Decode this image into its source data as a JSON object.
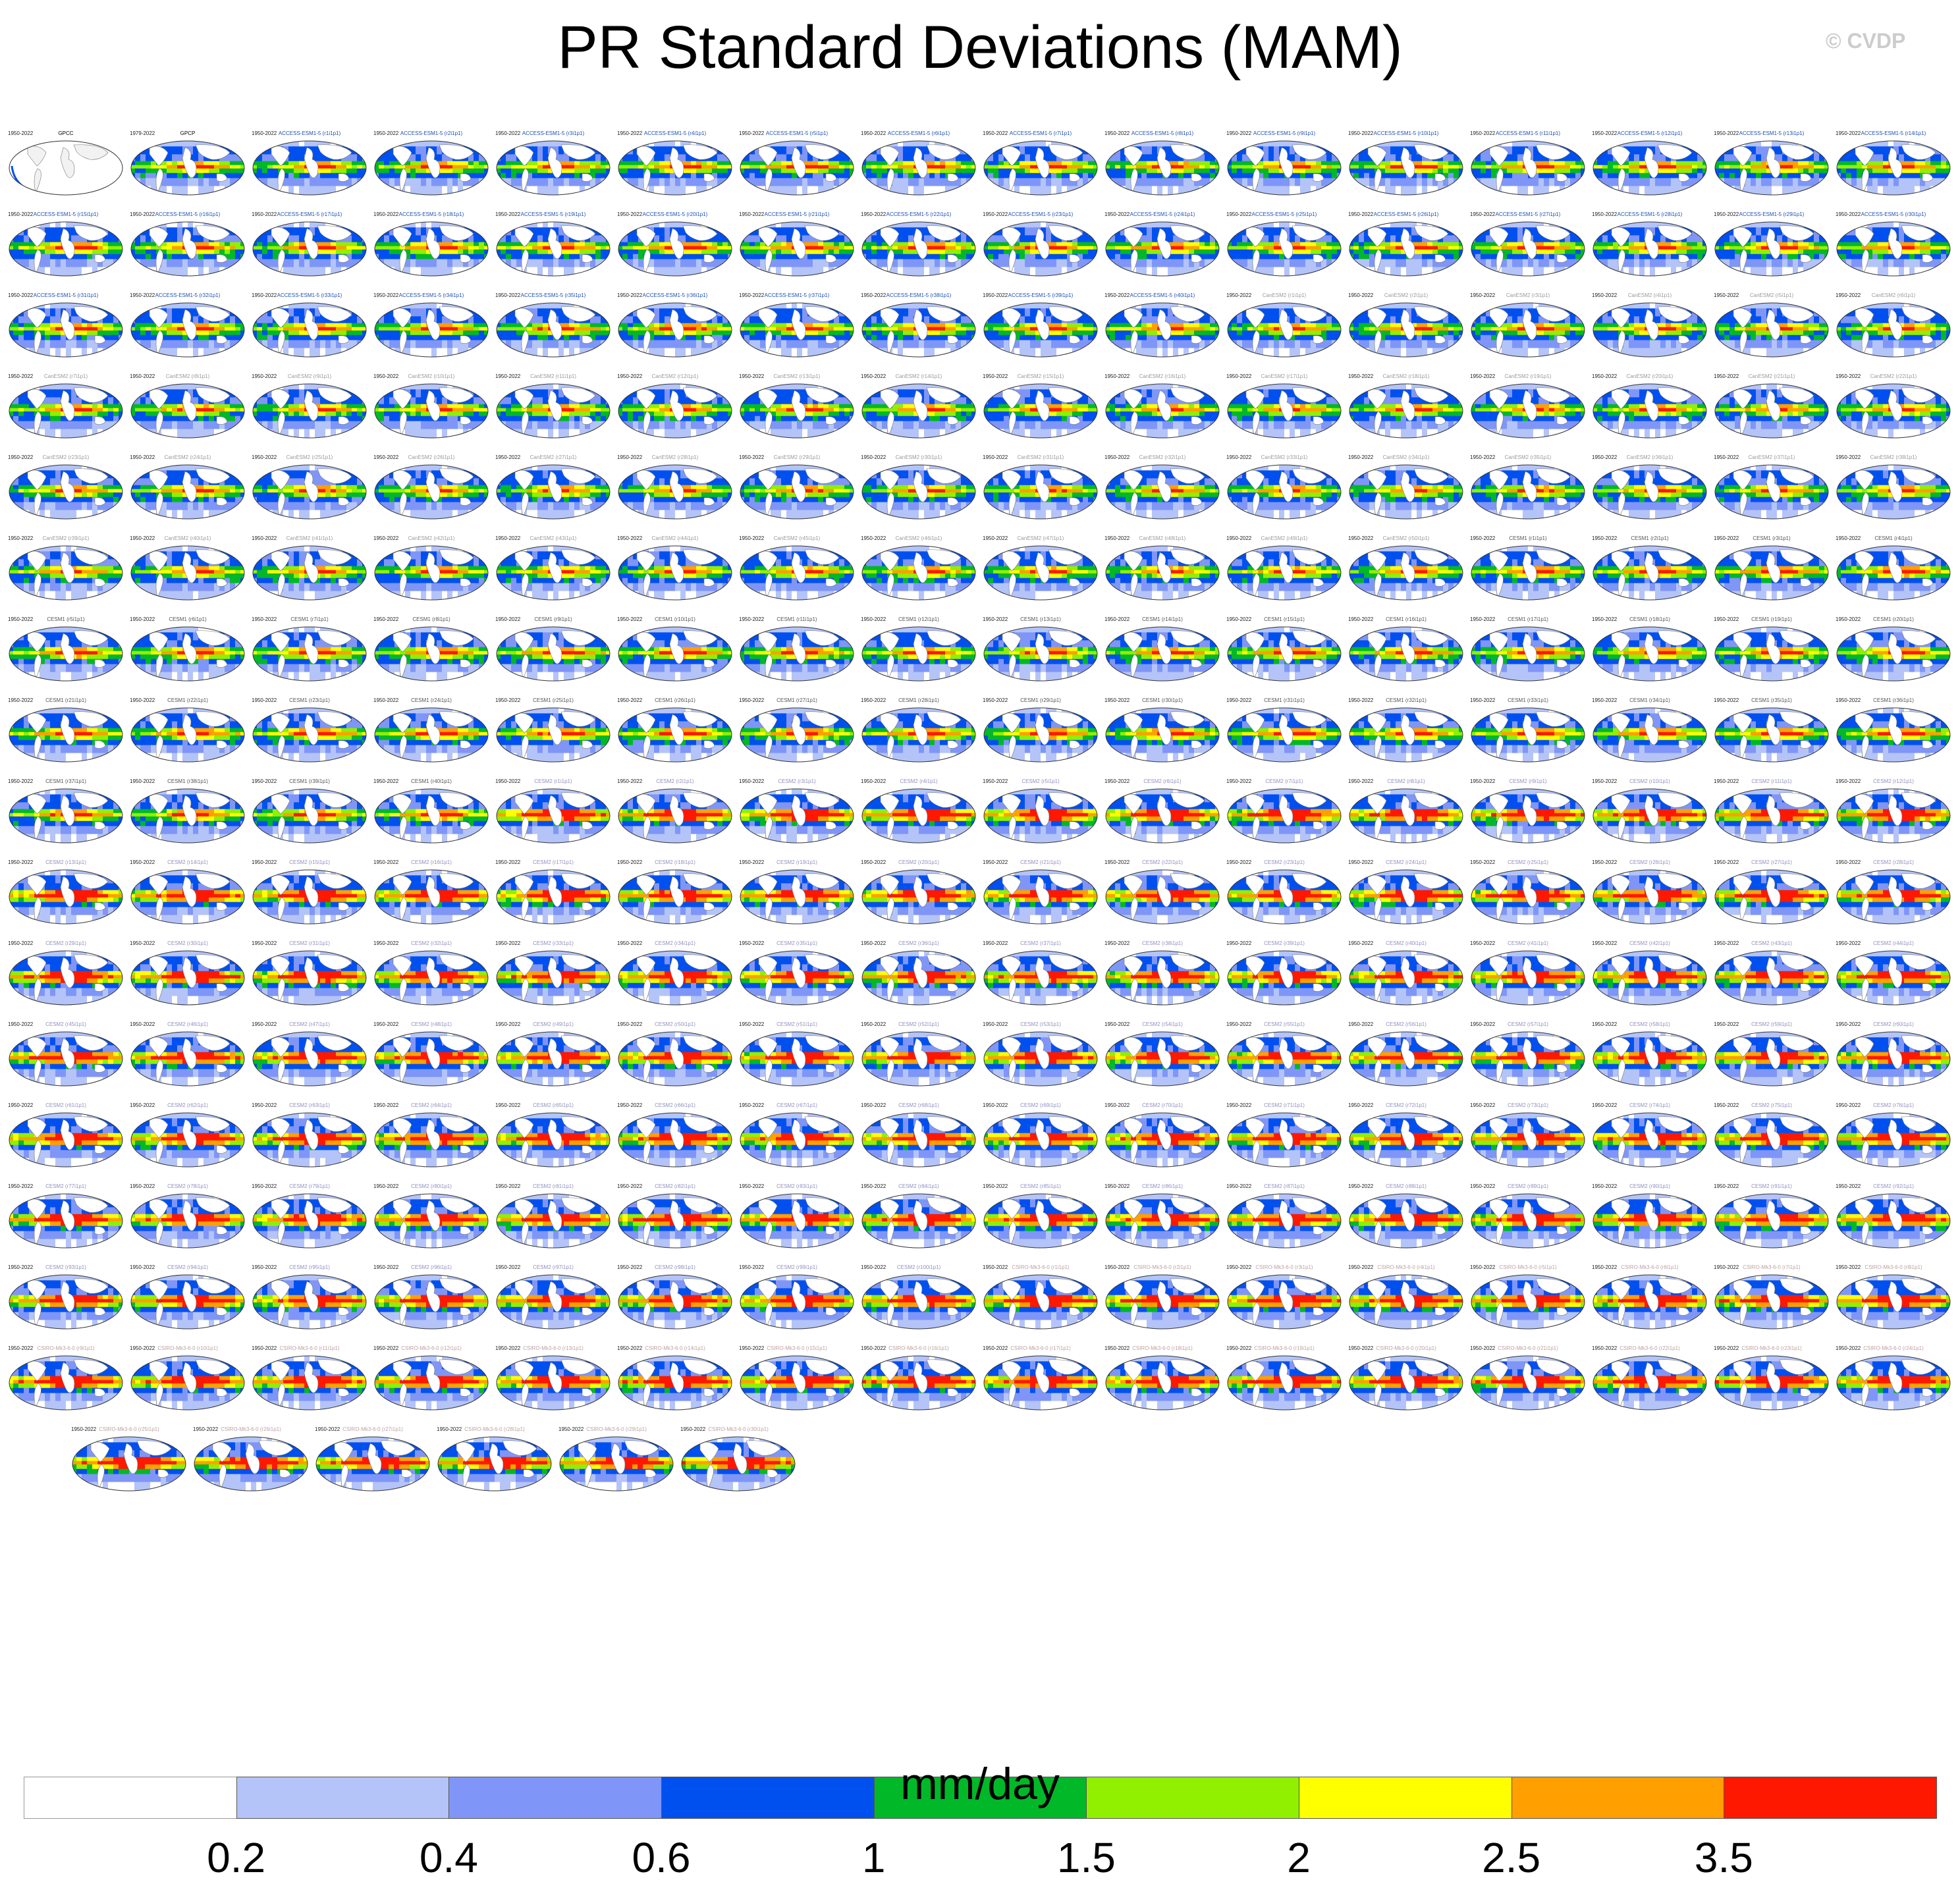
{
  "title": "PR Standard Deviations (MAM)",
  "watermark": "© CVDP",
  "chart_data": {
    "type": "heatmap",
    "title": "PR Standard Deviations (MAM)",
    "colorbar": {
      "units": "mm/day",
      "ticks": [
        "0.2",
        "0.4",
        "0.6",
        "1",
        "1.5",
        "2",
        "2.5",
        "3.5"
      ],
      "colors": [
        "#ffffff",
        "#b4c4f8",
        "#7f96f8",
        "#0050f0",
        "#00b828",
        "#90f000",
        "#ffff00",
        "#ffa000",
        "#ff1800"
      ]
    },
    "grid": {
      "rows": 17,
      "columns": 16,
      "last_row_panels": 15
    },
    "panels": [
      {
        "label": "GPCC",
        "label_color": "#000000",
        "period": "1950-2022",
        "value": "",
        "style": "obs"
      },
      {
        "label": "GPCP",
        "label_color": "#000000",
        "period": "1979-2022",
        "value": ""
      }
    ],
    "model_groups": [
      {
        "name": "ACCESS-ESM1-5",
        "count": 40,
        "label_color": "#1e50b4",
        "intensity": 1.0
      },
      {
        "name": "CanESM2",
        "count": 50,
        "label_color": "#9a9a9a",
        "intensity": 0.95
      },
      {
        "name": "CESM1",
        "count": 40,
        "label_color": "#555555",
        "intensity": 1.05
      },
      {
        "name": "CESM2",
        "count": 100,
        "label_color": "#9090c0",
        "intensity": 1.6
      },
      {
        "name": "CSIRO-Mk3-6-0",
        "count": 30,
        "label_color": "#c0a0a0",
        "intensity": 1.7
      }
    ]
  }
}
